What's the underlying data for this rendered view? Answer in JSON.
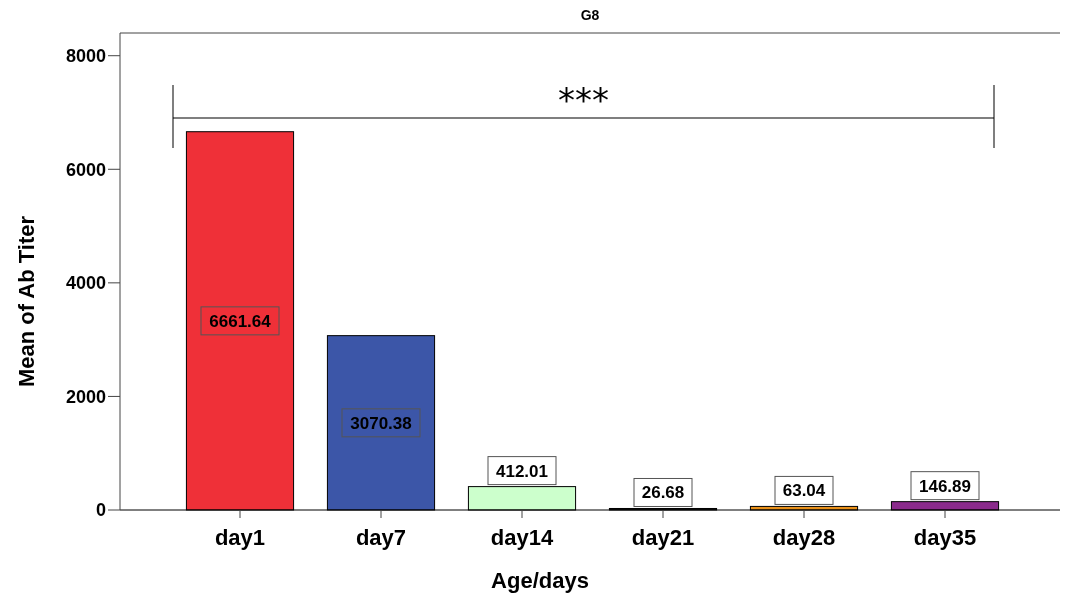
{
  "chart_data": {
    "type": "bar",
    "title": "G8",
    "xlabel": "Age/days",
    "ylabel": "Mean of Ab Titer",
    "categories": [
      "day1",
      "day7",
      "day14",
      "day21",
      "day28",
      "day35"
    ],
    "values": [
      6661.64,
      3070.38,
      412.01,
      26.68,
      63.04,
      146.89
    ],
    "colors": [
      "#ef3038",
      "#3c56a8",
      "#ccffcc",
      "#222222",
      "#e8901a",
      "#8b2a8c"
    ],
    "ylim": [
      0,
      8400
    ],
    "yticks": [
      0,
      2000,
      4000,
      6000,
      8000
    ],
    "grid": false,
    "data_labels": true,
    "annotations": [
      "***"
    ]
  }
}
